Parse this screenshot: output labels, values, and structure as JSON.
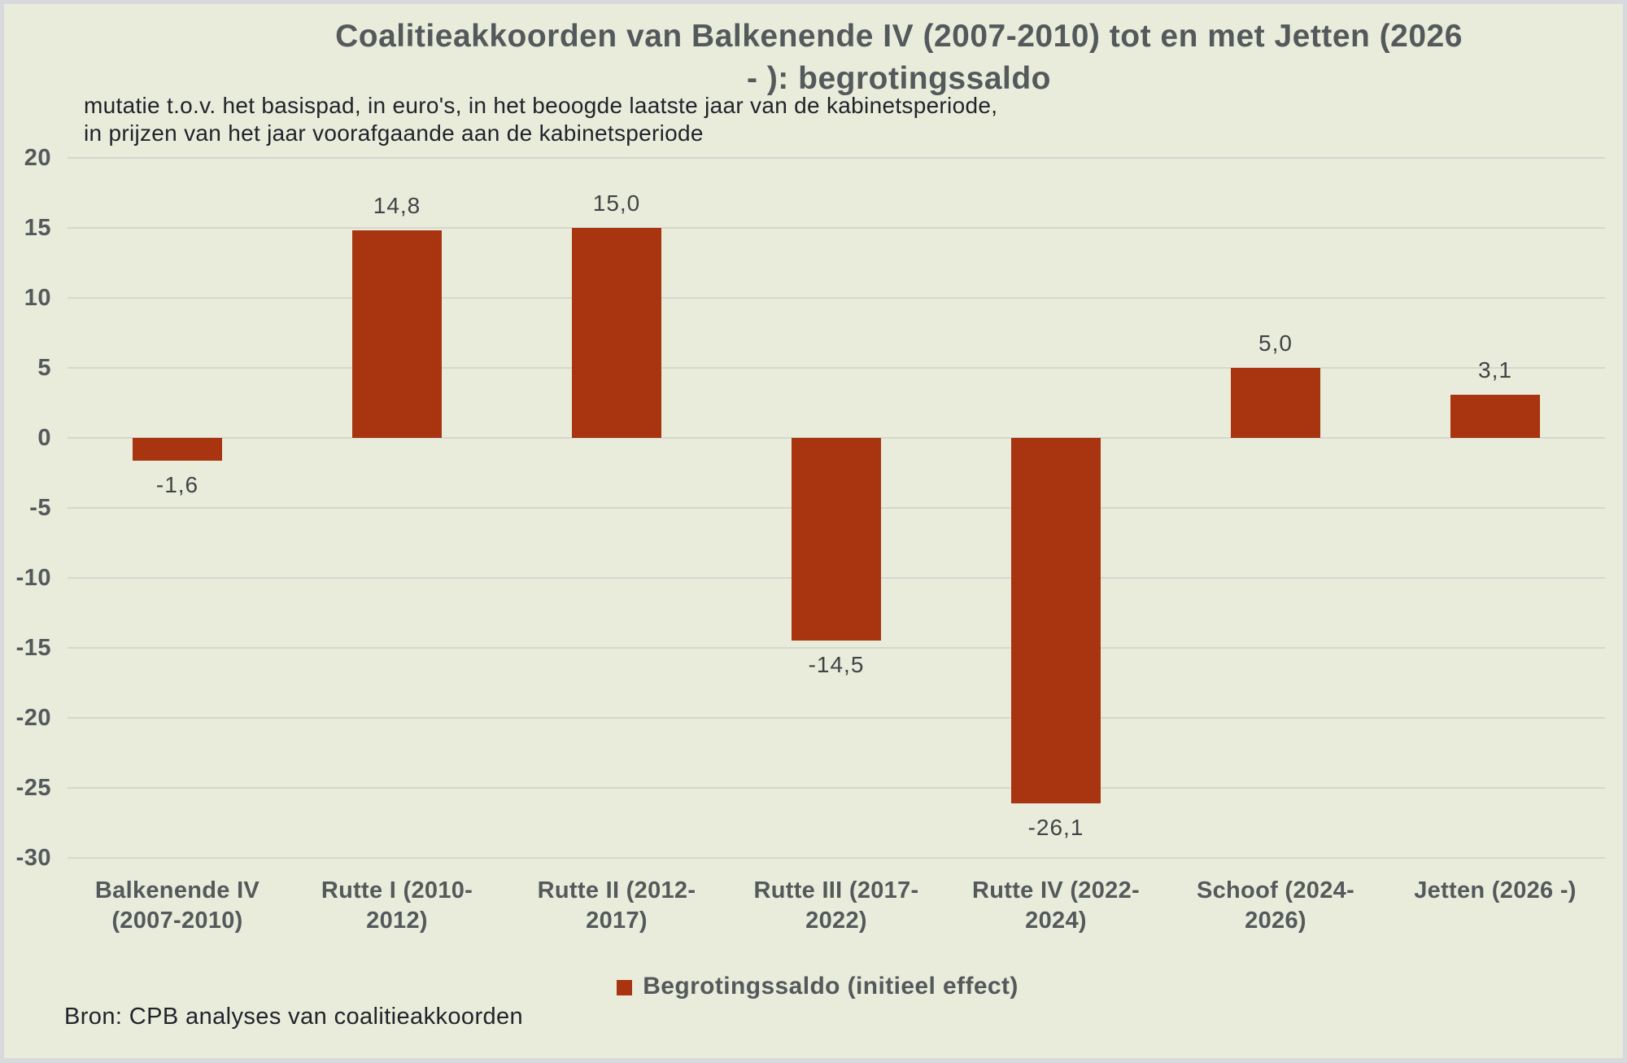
{
  "colors": {
    "background": "#e9ecdb",
    "frame": "#d8d9dd",
    "grid": "#d5d7ce",
    "bar": "#a83410",
    "text": "#54595b"
  },
  "chart_data": {
    "type": "bar",
    "title": "Coalitieakkoorden van Balkenende IV (2007-2010) tot en met Jetten (2026\n- ): begrotingssaldo",
    "subtitle": "mutatie t.o.v. het basispad, in euro's, in het beoogde laatste jaar van de kabinetsperiode,\nin prijzen van het jaar voorafgaande aan de kabinetsperiode",
    "categories": [
      "Balkenende IV\n(2007-2010)",
      "Rutte I  (2010-\n2012)",
      "Rutte II  (2012-\n2017)",
      "Rutte III  (2017-\n2022)",
      "Rutte IV  (2022-\n2024)",
      "Schoof  (2024-\n2026)",
      "Jetten  (2026 -)"
    ],
    "series": [
      {
        "name": "Begrotingssaldo (initieel effect)",
        "values": [
          -1.6,
          14.8,
          15.0,
          -14.5,
          -26.1,
          5.0,
          3.1
        ],
        "labels": [
          "-1,6",
          "14,8",
          "15,0",
          "-14,5",
          "-26,1",
          "5,0",
          "3,1"
        ],
        "color": "#a83410"
      }
    ],
    "ylim": [
      -30,
      20
    ],
    "ytick_step": 5,
    "yticks": [
      20,
      15,
      10,
      5,
      0,
      -5,
      -10,
      -15,
      -20,
      -25,
      -30
    ],
    "grid": true,
    "legend_position": "bottom",
    "source": "Bron: CPB analyses van coalitieakkoorden"
  }
}
